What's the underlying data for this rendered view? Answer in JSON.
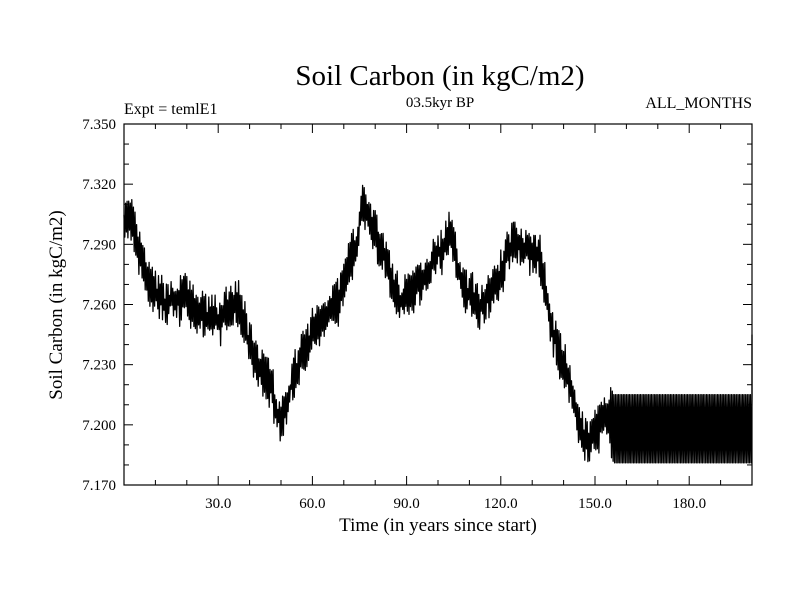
{
  "chart_data": {
    "type": "line",
    "title": "Soil Carbon (in kgC/m2)",
    "subtitle": "03.5kyr BP",
    "left_label": "Expt = temlE1",
    "right_label": "ALL_MONTHS",
    "xlabel": "Time (in years since start)",
    "ylabel": "Soil Carbon (in kgC/m2)",
    "xlim": [
      0,
      200
    ],
    "ylim": [
      7.17,
      7.35
    ],
    "x_ticks": [
      30,
      60,
      90,
      120,
      150,
      180
    ],
    "x_tick_labels": [
      "30.0",
      "60.0",
      "90.0",
      "120.0",
      "150.0",
      "180.0"
    ],
    "y_ticks": [
      7.17,
      7.2,
      7.23,
      7.26,
      7.29,
      7.32,
      7.35
    ],
    "y_tick_labels": [
      "7.170",
      "7.200",
      "7.230",
      "7.260",
      "7.290",
      "7.320",
      "7.350"
    ],
    "grid": false,
    "line_color": "#000000",
    "series": [
      {
        "x": [
          0,
          2,
          4,
          6,
          8,
          10,
          12,
          14,
          16,
          18,
          20,
          22,
          24,
          26,
          28,
          30,
          32,
          34,
          36,
          38,
          40,
          42,
          44,
          46,
          48,
          50,
          52,
          54,
          56,
          58,
          60,
          62,
          64,
          66,
          68,
          70,
          72,
          74,
          76,
          78,
          80,
          82,
          84,
          86,
          88,
          90,
          92,
          94,
          96,
          98,
          100,
          102,
          104,
          106,
          108,
          110,
          112,
          114,
          116,
          118,
          120,
          122,
          124,
          126,
          128,
          130,
          132,
          134,
          136,
          138,
          140,
          142,
          144,
          146,
          148,
          150,
          152,
          154,
          156,
          160,
          170,
          180,
          190,
          200
        ],
        "values": [
          7.3,
          7.303,
          7.29,
          7.28,
          7.27,
          7.265,
          7.262,
          7.26,
          7.262,
          7.262,
          7.265,
          7.258,
          7.255,
          7.254,
          7.253,
          7.252,
          7.255,
          7.258,
          7.262,
          7.252,
          7.24,
          7.23,
          7.228,
          7.222,
          7.212,
          7.2,
          7.21,
          7.225,
          7.232,
          7.238,
          7.246,
          7.25,
          7.255,
          7.26,
          7.262,
          7.27,
          7.282,
          7.29,
          7.312,
          7.303,
          7.295,
          7.288,
          7.28,
          7.268,
          7.262,
          7.265,
          7.268,
          7.27,
          7.275,
          7.28,
          7.285,
          7.29,
          7.295,
          7.28,
          7.268,
          7.265,
          7.262,
          7.26,
          7.265,
          7.27,
          7.275,
          7.285,
          7.292,
          7.29,
          7.288,
          7.287,
          7.285,
          7.27,
          7.25,
          7.238,
          7.23,
          7.22,
          7.205,
          7.195,
          7.19,
          7.195,
          7.2,
          7.205,
          7.198,
          7.198,
          7.198,
          7.198,
          7.198,
          7.198
        ]
      }
    ]
  }
}
